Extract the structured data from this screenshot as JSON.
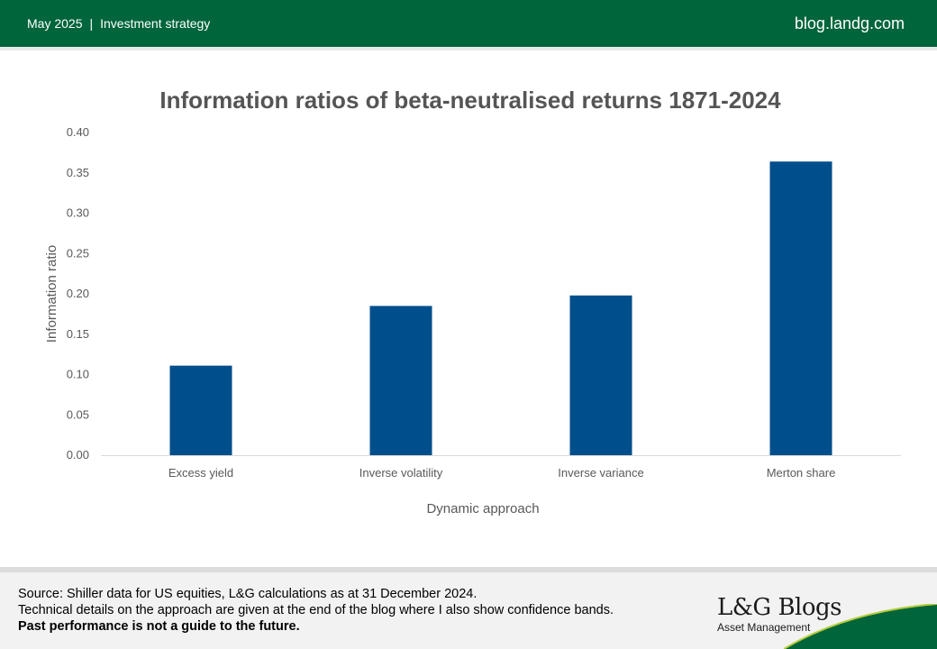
{
  "header": {
    "date": "May 2025",
    "separator": "|",
    "category": "Investment strategy",
    "site": "blog.landg.com"
  },
  "chart_data": {
    "type": "bar",
    "title": "Information ratios of beta-neutralised returns 1871-2024",
    "xlabel": "Dynamic approach",
    "ylabel": "Information ratio",
    "categories": [
      "Excess yield",
      "Inverse volatility",
      "Inverse variance",
      "Merton share"
    ],
    "values": [
      0.111,
      0.185,
      0.198,
      0.364
    ],
    "ylim": [
      0,
      0.4
    ],
    "yticks": [
      "0.00",
      "0.05",
      "0.10",
      "0.15",
      "0.20",
      "0.25",
      "0.30",
      "0.35",
      "0.40"
    ],
    "bar_color": "#004e8c",
    "grid": false,
    "legend": "none"
  },
  "footer": {
    "line1": "Source: Shiller data for US equities, L&G calculations as at 31 December 2024.",
    "line2": "Technical details on the approach are given at the end of the blog where I also show confidence bands.",
    "line3": "Past performance is not a guide to the future.",
    "brand_name": "L&G Blogs",
    "brand_sub": "Asset Management"
  },
  "colors": {
    "header_green": "#00653a",
    "bar_blue": "#004e8c"
  }
}
